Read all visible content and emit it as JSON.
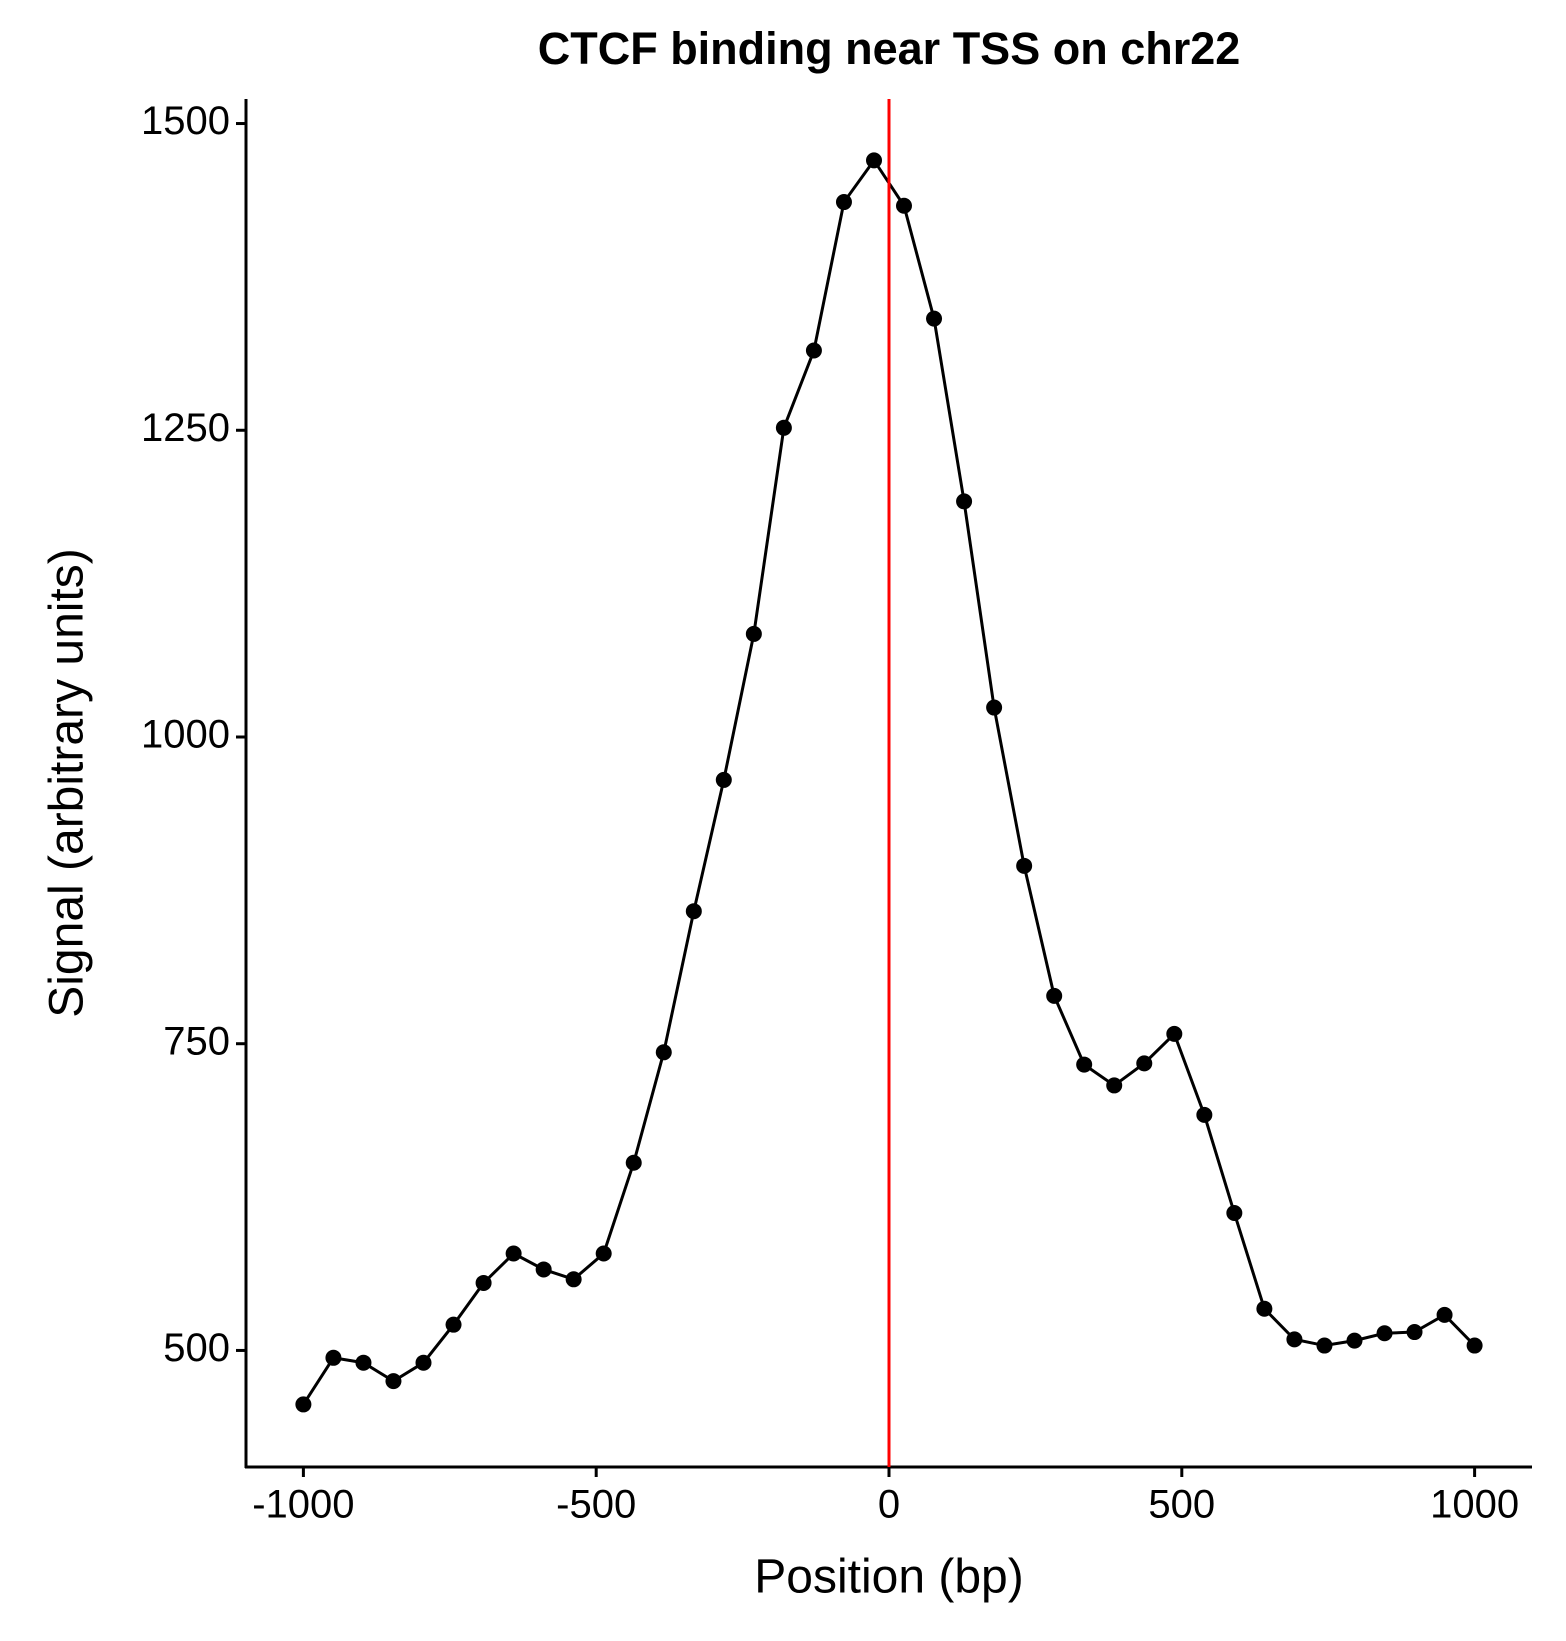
{
  "chart_data": {
    "type": "line",
    "title": "CTCF binding near TSS on chr22",
    "x_label": "Position (bp)",
    "y_label": "Signal (arbitrary units)",
    "x": [
      -1000,
      -948.7,
      -897.4,
      -846.2,
      -794.9,
      -743.6,
      -692.3,
      -641.0,
      -589.7,
      -538.5,
      -487.2,
      -435.9,
      -384.6,
      -333.3,
      -282.1,
      -230.8,
      -179.5,
      -128.2,
      -76.9,
      -25.6,
      25.6,
      76.9,
      128.2,
      179.5,
      230.8,
      282.1,
      333.3,
      384.6,
      435.9,
      487.2,
      538.5,
      589.7,
      641.0,
      692.3,
      743.6,
      794.9,
      846.2,
      897.4,
      948.7,
      1000
    ],
    "series": [
      {
        "name": "signal",
        "color": "#000000",
        "values": [
          456,
          494,
          490,
          475,
          490,
          521,
          555,
          579,
          566,
          558,
          579,
          653,
          743,
          858,
          965,
          1084,
          1252,
          1315,
          1436,
          1470,
          1433,
          1341,
          1192,
          1024,
          895,
          789,
          733,
          716,
          734,
          758,
          692,
          612,
          534,
          509,
          504,
          508,
          514,
          515,
          529,
          504
        ]
      }
    ],
    "vline": {
      "value": 0,
      "color": "#ff0000"
    },
    "xlim": [
      -1098,
      1098
    ],
    "xticks": [
      -1000,
      -500,
      0,
      500,
      1000
    ],
    "ylim": [
      405,
      1520
    ],
    "yticks": [
      500,
      750,
      1000,
      1250,
      1500
    ]
  }
}
